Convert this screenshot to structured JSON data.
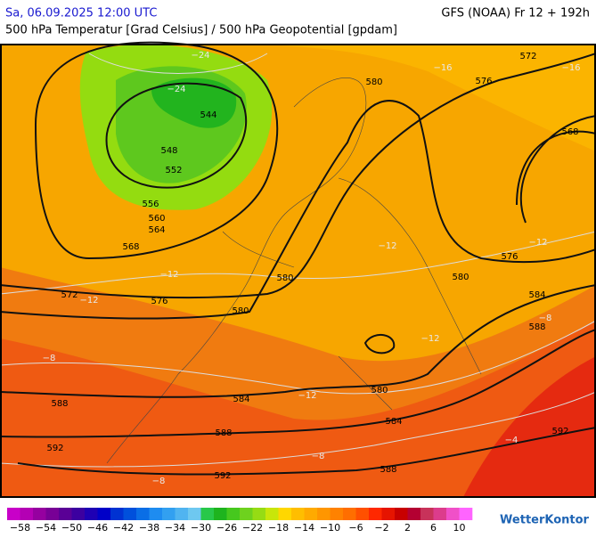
{
  "header": {
    "date": "Sa, 06.09.2025 12:00 UTC",
    "model": "GFS (NOAA) Fr 12 + 192h",
    "subtitle": "500 hPa Temperatur [Grad Celsius] / 500 hPa Geopotential [gpdam]"
  },
  "geopotential_labels": [
    "572",
    "580",
    "576",
    "568",
    "544",
    "548",
    "552",
    "556",
    "560",
    "564",
    "568",
    "576",
    "580",
    "580",
    "572",
    "576",
    "584",
    "580",
    "588",
    "580",
    "584",
    "584",
    "588",
    "588",
    "592",
    "592",
    "592",
    "588"
  ],
  "temperature_labels": [
    "−24",
    "−24",
    "−16",
    "−16",
    "−12",
    "−12",
    "−12",
    "−12",
    "−8",
    "−8",
    "−12",
    "−12",
    "−8",
    "−8",
    "−4"
  ],
  "colorbar": {
    "labels": [
      "−58",
      "−54",
      "−50",
      "−46",
      "−42",
      "−38",
      "−34",
      "−30",
      "−26",
      "−22",
      "−18",
      "−14",
      "−10",
      "−6",
      "−2",
      "2",
      "6",
      "10"
    ]
  },
  "logo": "WetterKontor"
}
